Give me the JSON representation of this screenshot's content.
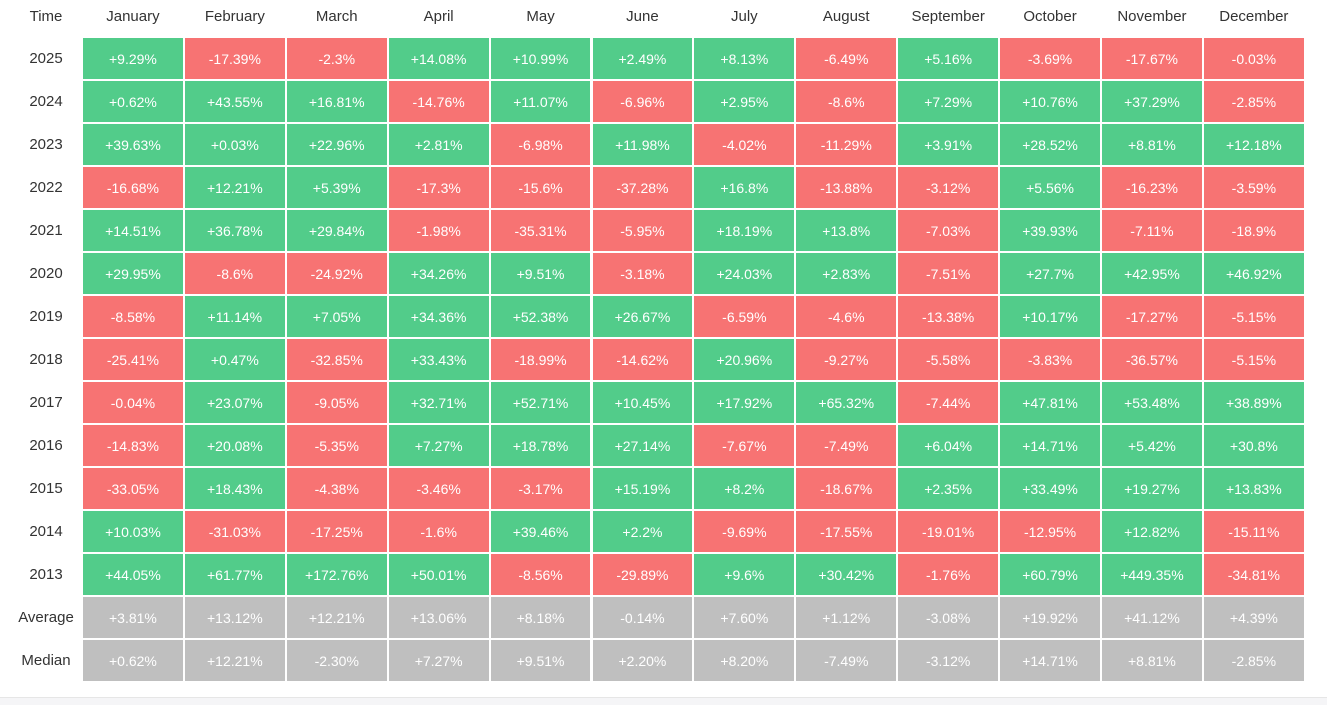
{
  "table": {
    "header": [
      "Time",
      "January",
      "February",
      "March",
      "April",
      "May",
      "June",
      "July",
      "August",
      "September",
      "October",
      "November",
      "December"
    ],
    "rows": [
      [
        "2025",
        "+9.29%",
        "-17.39%",
        "-2.3%",
        "+14.08%",
        "+10.99%",
        "+2.49%",
        "+8.13%",
        "-6.49%",
        "+5.16%",
        "-3.69%",
        "-17.67%",
        "-0.03%"
      ],
      [
        "2024",
        "+0.62%",
        "+43.55%",
        "+16.81%",
        "-14.76%",
        "+11.07%",
        "-6.96%",
        "+2.95%",
        "-8.6%",
        "+7.29%",
        "+10.76%",
        "+37.29%",
        "-2.85%"
      ],
      [
        "2023",
        "+39.63%",
        "+0.03%",
        "+22.96%",
        "+2.81%",
        "-6.98%",
        "+11.98%",
        "-4.02%",
        "-11.29%",
        "+3.91%",
        "+28.52%",
        "+8.81%",
        "+12.18%"
      ],
      [
        "2022",
        "-16.68%",
        "+12.21%",
        "+5.39%",
        "-17.3%",
        "-15.6%",
        "-37.28%",
        "+16.8%",
        "-13.88%",
        "-3.12%",
        "+5.56%",
        "-16.23%",
        "-3.59%"
      ],
      [
        "2021",
        "+14.51%",
        "+36.78%",
        "+29.84%",
        "-1.98%",
        "-35.31%",
        "-5.95%",
        "+18.19%",
        "+13.8%",
        "-7.03%",
        "+39.93%",
        "-7.11%",
        "-18.9%"
      ],
      [
        "2020",
        "+29.95%",
        "-8.6%",
        "-24.92%",
        "+34.26%",
        "+9.51%",
        "-3.18%",
        "+24.03%",
        "+2.83%",
        "-7.51%",
        "+27.7%",
        "+42.95%",
        "+46.92%"
      ],
      [
        "2019",
        "-8.58%",
        "+11.14%",
        "+7.05%",
        "+34.36%",
        "+52.38%",
        "+26.67%",
        "-6.59%",
        "-4.6%",
        "-13.38%",
        "+10.17%",
        "-17.27%",
        "-5.15%"
      ],
      [
        "2018",
        "-25.41%",
        "+0.47%",
        "-32.85%",
        "+33.43%",
        "-18.99%",
        "-14.62%",
        "+20.96%",
        "-9.27%",
        "-5.58%",
        "-3.83%",
        "-36.57%",
        "-5.15%"
      ],
      [
        "2017",
        "-0.04%",
        "+23.07%",
        "-9.05%",
        "+32.71%",
        "+52.71%",
        "+10.45%",
        "+17.92%",
        "+65.32%",
        "-7.44%",
        "+47.81%",
        "+53.48%",
        "+38.89%"
      ],
      [
        "2016",
        "-14.83%",
        "+20.08%",
        "-5.35%",
        "+7.27%",
        "+18.78%",
        "+27.14%",
        "-7.67%",
        "-7.49%",
        "+6.04%",
        "+14.71%",
        "+5.42%",
        "+30.8%"
      ],
      [
        "2015",
        "-33.05%",
        "+18.43%",
        "-4.38%",
        "-3.46%",
        "-3.17%",
        "+15.19%",
        "+8.2%",
        "-18.67%",
        "+2.35%",
        "+33.49%",
        "+19.27%",
        "+13.83%"
      ],
      [
        "2014",
        "+10.03%",
        "-31.03%",
        "-17.25%",
        "-1.6%",
        "+39.46%",
        "+2.2%",
        "-9.69%",
        "-17.55%",
        "-19.01%",
        "-12.95%",
        "+12.82%",
        "-15.11%"
      ],
      [
        "2013",
        "+44.05%",
        "+61.77%",
        "+172.76%",
        "+50.01%",
        "-8.56%",
        "-29.89%",
        "+9.6%",
        "+30.42%",
        "-1.76%",
        "+60.79%",
        "+449.35%",
        "-34.81%"
      ]
    ],
    "summary_rows": [
      [
        "Average",
        "+3.81%",
        "+13.12%",
        "+12.21%",
        "+13.06%",
        "+8.18%",
        "-0.14%",
        "+7.60%",
        "+1.12%",
        "-3.08%",
        "+19.92%",
        "+41.12%",
        "+4.39%"
      ],
      [
        "Median",
        "+0.62%",
        "+12.21%",
        "-2.30%",
        "+7.27%",
        "+9.51%",
        "+2.20%",
        "+8.20%",
        "-7.49%",
        "-3.12%",
        "+14.71%",
        "+8.81%",
        "-2.85%"
      ]
    ]
  }
}
